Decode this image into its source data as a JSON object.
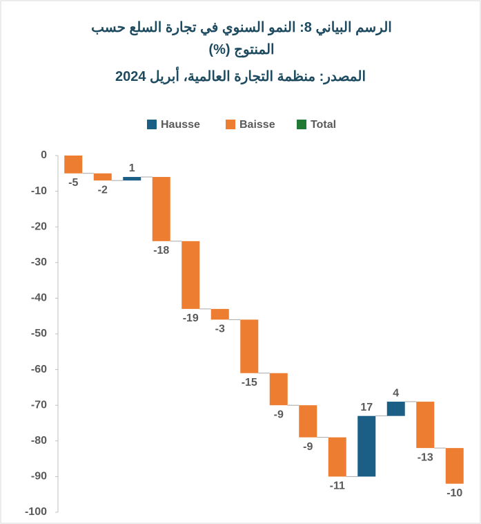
{
  "chart_data": {
    "type": "waterfall",
    "title": "الرسم البياني 8: النمو السنوي في تجارة السلع حسب المنتوج (%)",
    "subtitle": "المصدر: منظمة التجارة العالمية، أبريل 2024",
    "legend": [
      {
        "name": "Hausse",
        "color": "#1b5f86"
      },
      {
        "name": "Baisse",
        "color": "#ed7d31"
      },
      {
        "name": "Total",
        "color": "#217a33"
      }
    ],
    "categories": [
      null,
      null,
      null,
      null,
      null,
      null,
      null,
      null,
      null,
      null,
      null,
      null,
      null,
      null
    ],
    "values": [
      -5,
      -2,
      1,
      -18,
      -19,
      -3,
      -15,
      -9,
      -9,
      -11,
      17,
      4,
      -13,
      -10
    ],
    "ylim": [
      -100,
      0
    ],
    "yticks": [
      0,
      -10,
      -20,
      -30,
      -40,
      -50,
      -60,
      -70,
      -80,
      -90,
      -100
    ]
  }
}
